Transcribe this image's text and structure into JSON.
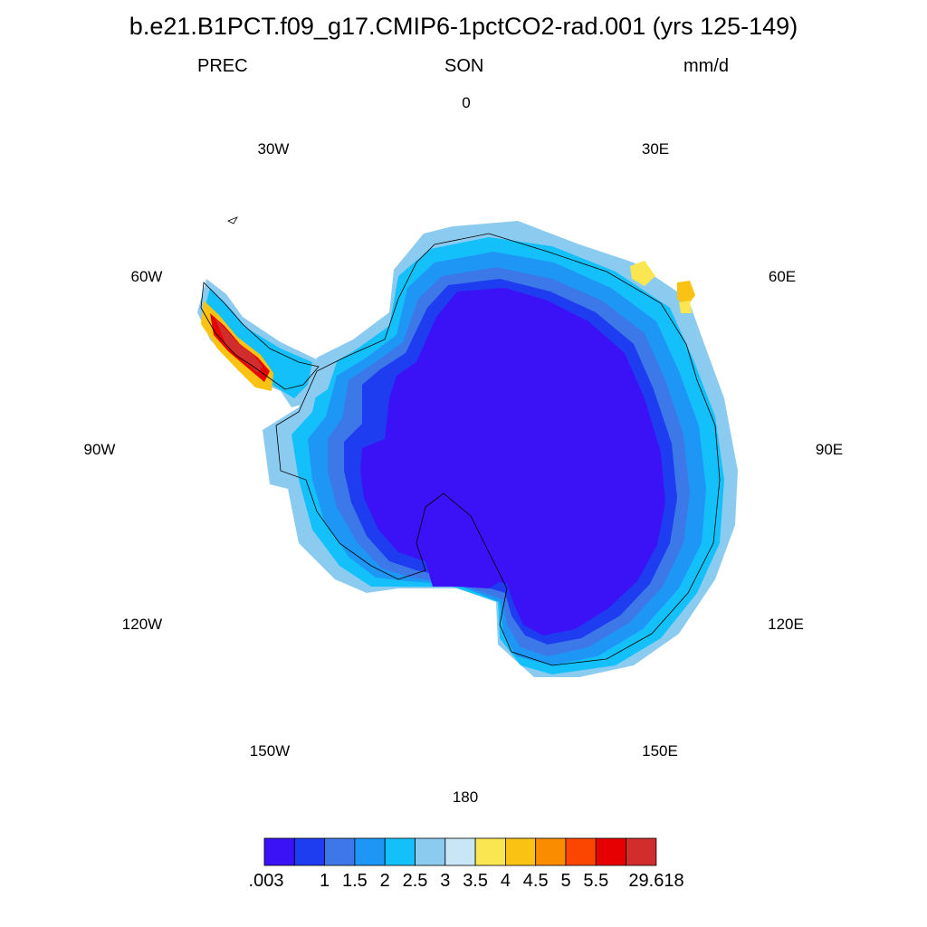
{
  "title": "b.e21.B1PCT.f09_g17.CMIP6-1pctCO2-rad.001 (yrs 125-149)",
  "variable": "PREC",
  "season": "SON",
  "units": "mm/d",
  "longitude_labels": [
    "0",
    "30E",
    "60E",
    "90E",
    "120E",
    "150E",
    "180",
    "150W",
    "120W",
    "90W",
    "60W",
    "30W"
  ],
  "colorbar": {
    "colors": [
      "#3b12f5",
      "#1e3cf0",
      "#3c78e8",
      "#1e96f5",
      "#14c0fa",
      "#8ccbf0",
      "#c8e6f5",
      "#fae650",
      "#fac314",
      "#fa8c00",
      "#fa4600",
      "#e60000",
      "#d22d2d"
    ],
    "labels": [
      ".003",
      "1",
      "1.5",
      "2",
      "2.5",
      "3",
      "3.5",
      "4",
      "4.5",
      "5",
      "5.5",
      "29.618"
    ]
  }
}
